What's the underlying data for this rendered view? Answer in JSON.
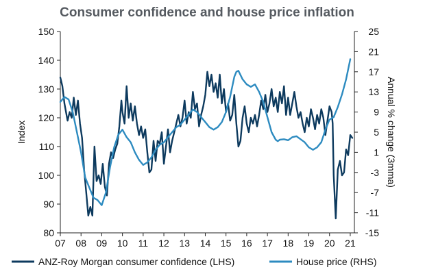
{
  "chart_data": {
    "type": "line",
    "title": "Consumer confidence and house price inflation",
    "ylabel_left": "Index",
    "ylabel_right": "Annual % change (3mma)",
    "x_range": [
      2007,
      2021.2
    ],
    "x_ticks": [
      "07",
      "08",
      "09",
      "10",
      "11",
      "12",
      "13",
      "14",
      "15",
      "16",
      "17",
      "18",
      "19",
      "20",
      "21"
    ],
    "ylim_left": [
      80,
      150
    ],
    "yticks_left": [
      "80",
      "90",
      "100",
      "110",
      "120",
      "130",
      "140",
      "150"
    ],
    "ylim_right": [
      -15,
      25
    ],
    "yticks_right": [
      "-15",
      "-11",
      "-7",
      "-3",
      "1",
      "5",
      "9",
      "13",
      "17",
      "21",
      "25"
    ],
    "grid": false,
    "legend_position": "bottom",
    "series": [
      {
        "name": "ANZ-Roy Morgan consumer confidence (LHS)",
        "axis": "left",
        "color": "#0d3a5e",
        "x": [
          2007.0,
          2007.1,
          2007.2,
          2007.35,
          2007.45,
          2007.55,
          2007.65,
          2007.75,
          2007.85,
          2007.95,
          2008.05,
          2008.15,
          2008.25,
          2008.35,
          2008.45,
          2008.55,
          2008.65,
          2008.75,
          2008.85,
          2008.95,
          2009.05,
          2009.15,
          2009.25,
          2009.35,
          2009.45,
          2009.55,
          2009.65,
          2009.75,
          2009.85,
          2009.95,
          2010.0,
          2010.1,
          2010.2,
          2010.3,
          2010.4,
          2010.5,
          2010.6,
          2010.7,
          2010.8,
          2010.9,
          2011.0,
          2011.1,
          2011.2,
          2011.3,
          2011.4,
          2011.5,
          2011.6,
          2011.7,
          2011.8,
          2011.9,
          2012.0,
          2012.1,
          2012.2,
          2012.3,
          2012.4,
          2012.5,
          2012.6,
          2012.7,
          2012.8,
          2012.9,
          2013.0,
          2013.1,
          2013.2,
          2013.3,
          2013.4,
          2013.5,
          2013.6,
          2013.7,
          2013.8,
          2013.9,
          2014.0,
          2014.1,
          2014.2,
          2014.3,
          2014.4,
          2014.5,
          2014.6,
          2014.7,
          2014.8,
          2014.9,
          2015.0,
          2015.1,
          2015.2,
          2015.3,
          2015.4,
          2015.5,
          2015.6,
          2015.7,
          2015.8,
          2015.9,
          2016.0,
          2016.1,
          2016.2,
          2016.3,
          2016.4,
          2016.5,
          2016.6,
          2016.7,
          2016.8,
          2016.9,
          2017.0,
          2017.1,
          2017.2,
          2017.3,
          2017.4,
          2017.5,
          2017.6,
          2017.7,
          2017.8,
          2017.9,
          2018.0,
          2018.1,
          2018.2,
          2018.3,
          2018.4,
          2018.5,
          2018.6,
          2018.7,
          2018.8,
          2018.9,
          2019.0,
          2019.1,
          2019.2,
          2019.3,
          2019.4,
          2019.5,
          2019.6,
          2019.7,
          2019.8,
          2019.9,
          2020.0,
          2020.1,
          2020.15,
          2020.2,
          2020.3,
          2020.4,
          2020.5,
          2020.6,
          2020.7,
          2020.8,
          2020.9,
          2021.0,
          2021.1
        ],
        "y": [
          134,
          131,
          125,
          119,
          122,
          120,
          127,
          121,
          126,
          118,
          113,
          102,
          94,
          86,
          89,
          86,
          110,
          98,
          100,
          97,
          104,
          96,
          93,
          104,
          108,
          106,
          109,
          111,
          117,
          126,
          122,
          118,
          131,
          120,
          125,
          119,
          124,
          118,
          114,
          117,
          113,
          116,
          108,
          101,
          102,
          112,
          105,
          112,
          111,
          115,
          104,
          110,
          116,
          108,
          112,
          115,
          118,
          121,
          117,
          120,
          126,
          118,
          122,
          120,
          129,
          123,
          125,
          117,
          121,
          124,
          128,
          136,
          131,
          135,
          129,
          132,
          127,
          135,
          125,
          130,
          122,
          125,
          119,
          121,
          128,
          118,
          110,
          112,
          120,
          124,
          118,
          115,
          120,
          118,
          121,
          117,
          121,
          126,
          123,
          128,
          122,
          125,
          130,
          124,
          127,
          122,
          129,
          125,
          131,
          121,
          127,
          121,
          125,
          129,
          124,
          120,
          122,
          118,
          115,
          120,
          117,
          123,
          120,
          116,
          121,
          118,
          123,
          120,
          114,
          119,
          124,
          122,
          118,
          100,
          85,
          102,
          105,
          100,
          101,
          109,
          107,
          114,
          113
        ]
      },
      {
        "name": "House price (RHS)",
        "axis": "right",
        "color": "#2d8bc0",
        "x": [
          2007.0,
          2007.2,
          2007.4,
          2007.6,
          2007.8,
          2008.0,
          2008.2,
          2008.4,
          2008.6,
          2008.8,
          2009.0,
          2009.2,
          2009.4,
          2009.6,
          2009.8,
          2010.0,
          2010.2,
          2010.4,
          2010.6,
          2010.8,
          2011.0,
          2011.2,
          2011.4,
          2011.6,
          2011.8,
          2012.0,
          2012.2,
          2012.4,
          2012.6,
          2012.8,
          2013.0,
          2013.2,
          2013.4,
          2013.6,
          2013.8,
          2014.0,
          2014.2,
          2014.4,
          2014.6,
          2014.8,
          2015.0,
          2015.2,
          2015.4,
          2015.5,
          2015.6,
          2015.8,
          2016.0,
          2016.2,
          2016.4,
          2016.6,
          2016.8,
          2017.0,
          2017.2,
          2017.4,
          2017.5,
          2017.6,
          2017.8,
          2018.0,
          2018.2,
          2018.4,
          2018.6,
          2018.8,
          2019.0,
          2019.2,
          2019.4,
          2019.6,
          2019.8,
          2020.0,
          2020.2,
          2020.4,
          2020.6,
          2020.8,
          2021.0
        ],
        "y": [
          11,
          12,
          11.5,
          9,
          5,
          1,
          -4,
          -6,
          -8,
          -8.5,
          -9.5,
          -7,
          -2,
          2,
          4.5,
          5.5,
          4,
          3,
          1,
          -0.5,
          -1.5,
          -1,
          0,
          1.5,
          2.5,
          3,
          4,
          5,
          6,
          6.5,
          7.5,
          8.5,
          9.5,
          9,
          8,
          7,
          6,
          5.5,
          6,
          7,
          9,
          12,
          16,
          17,
          17.2,
          15.5,
          14.5,
          14,
          14.5,
          13,
          11,
          8,
          5,
          3.5,
          3.2,
          3.5,
          3.6,
          3.4,
          4,
          4.2,
          3.6,
          3,
          2,
          1.5,
          2,
          3,
          5.5,
          7.5,
          8,
          10,
          12.5,
          15.5,
          19.5
        ]
      }
    ]
  }
}
